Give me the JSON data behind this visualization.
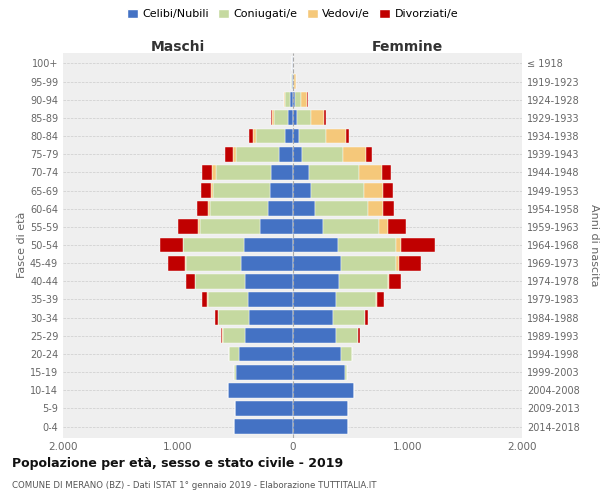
{
  "age_groups": [
    "0-4",
    "5-9",
    "10-14",
    "15-19",
    "20-24",
    "25-29",
    "30-34",
    "35-39",
    "40-44",
    "45-49",
    "50-54",
    "55-59",
    "60-64",
    "65-69",
    "70-74",
    "75-79",
    "80-84",
    "85-89",
    "90-94",
    "95-99",
    "100+"
  ],
  "birth_years": [
    "2014-2018",
    "2009-2013",
    "2004-2008",
    "1999-2003",
    "1994-1998",
    "1989-1993",
    "1984-1988",
    "1979-1983",
    "1974-1978",
    "1969-1973",
    "1964-1968",
    "1959-1963",
    "1954-1958",
    "1949-1953",
    "1944-1948",
    "1939-1943",
    "1934-1938",
    "1929-1933",
    "1924-1928",
    "1919-1923",
    "≤ 1918"
  ],
  "maschi": {
    "celibi": [
      510,
      500,
      560,
      490,
      465,
      415,
      375,
      385,
      415,
      445,
      425,
      285,
      215,
      195,
      185,
      115,
      65,
      35,
      18,
      8,
      2
    ],
    "coniugati": [
      2,
      2,
      5,
      18,
      85,
      195,
      275,
      355,
      435,
      485,
      525,
      525,
      505,
      495,
      485,
      375,
      255,
      125,
      48,
      7,
      1
    ],
    "vedovi": [
      0,
      0,
      0,
      0,
      1,
      1,
      1,
      2,
      3,
      5,
      8,
      10,
      15,
      20,
      28,
      28,
      28,
      18,
      8,
      2,
      0
    ],
    "divorziati": [
      0,
      0,
      0,
      2,
      5,
      14,
      28,
      48,
      78,
      148,
      195,
      175,
      98,
      88,
      88,
      68,
      28,
      8,
      2,
      0,
      0
    ]
  },
  "femmine": {
    "nubili": [
      480,
      480,
      535,
      455,
      425,
      375,
      355,
      375,
      405,
      425,
      395,
      265,
      195,
      165,
      145,
      85,
      55,
      35,
      18,
      8,
      2
    ],
    "coniugate": [
      2,
      2,
      5,
      20,
      90,
      195,
      275,
      355,
      425,
      475,
      505,
      485,
      465,
      455,
      435,
      355,
      235,
      125,
      52,
      9,
      1
    ],
    "vedove": [
      0,
      0,
      0,
      0,
      1,
      2,
      4,
      8,
      15,
      28,
      48,
      78,
      128,
      168,
      198,
      198,
      178,
      118,
      58,
      14,
      1
    ],
    "divorziate": [
      0,
      0,
      0,
      2,
      5,
      14,
      28,
      58,
      98,
      195,
      295,
      158,
      98,
      88,
      78,
      58,
      28,
      12,
      4,
      2,
      0
    ]
  },
  "colors": {
    "celibi": "#4472C4",
    "coniugati": "#C5D9A0",
    "vedovi": "#F5C87A",
    "divorziati": "#C00000"
  },
  "title": "Popolazione per età, sesso e stato civile - 2019",
  "subtitle": "COMUNE DI MERANO (BZ) - Dati ISTAT 1° gennaio 2019 - Elaborazione TUTTITALIA.IT",
  "xlabel_left": "Maschi",
  "xlabel_right": "Femmine",
  "ylabel_left": "Fasce di età",
  "ylabel_right": "Anni di nascita",
  "xlim": 2000,
  "legend_labels": [
    "Celibi/Nubili",
    "Coniugati/e",
    "Vedovi/e",
    "Divorziati/e"
  ],
  "background_color": "#ffffff",
  "plot_bg_color": "#efefef",
  "grid_color": "#cccccc"
}
